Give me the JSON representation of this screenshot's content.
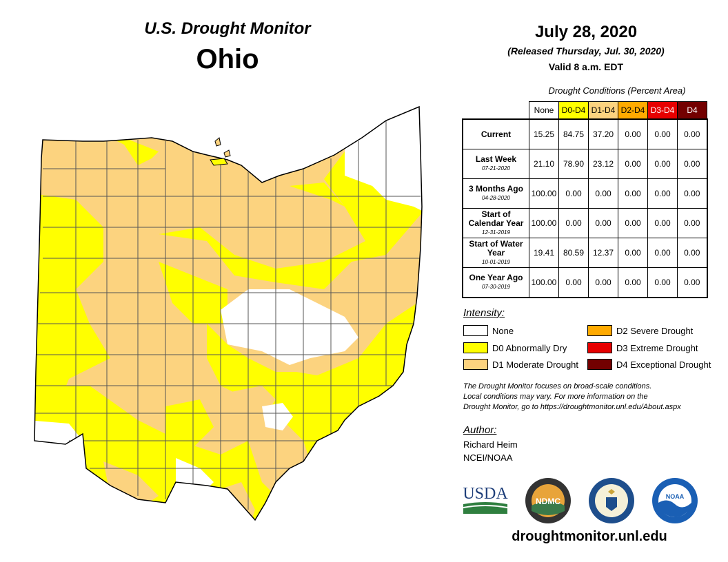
{
  "header": {
    "monitor_title": "U.S. Drought Monitor",
    "state": "Ohio",
    "map_date": "July 28, 2020",
    "released": "(Released Thursday, Jul. 30, 2020)",
    "valid": "Valid 8 a.m. EDT"
  },
  "table": {
    "caption": "Drought Conditions (Percent Area)",
    "columns": [
      {
        "label": "None",
        "color": "#ffffff",
        "text_color": "#000000"
      },
      {
        "label": "D0-D4",
        "color": "#ffff00",
        "text_color": "#000000"
      },
      {
        "label": "D1-D4",
        "color": "#fcd37f",
        "text_color": "#000000"
      },
      {
        "label": "D2-D4",
        "color": "#ffaa00",
        "text_color": "#000000"
      },
      {
        "label": "D3-D4",
        "color": "#e60000",
        "text_color": "#ffffff"
      },
      {
        "label": "D4",
        "color": "#730000",
        "text_color": "#ffffff"
      }
    ],
    "rows": [
      {
        "label": "Current",
        "date": "",
        "values": [
          "15.25",
          "84.75",
          "37.20",
          "0.00",
          "0.00",
          "0.00"
        ]
      },
      {
        "label": "Last Week",
        "date": "07-21-2020",
        "values": [
          "21.10",
          "78.90",
          "23.12",
          "0.00",
          "0.00",
          "0.00"
        ]
      },
      {
        "label": "3 Months Ago",
        "date": "04-28-2020",
        "values": [
          "100.00",
          "0.00",
          "0.00",
          "0.00",
          "0.00",
          "0.00"
        ]
      },
      {
        "label": "Start of Calendar Year",
        "date": "12-31-2019",
        "values": [
          "100.00",
          "0.00",
          "0.00",
          "0.00",
          "0.00",
          "0.00"
        ]
      },
      {
        "label": "Start of Water Year",
        "date": "10-01-2019",
        "values": [
          "19.41",
          "80.59",
          "12.37",
          "0.00",
          "0.00",
          "0.00"
        ]
      },
      {
        "label": "One Year Ago",
        "date": "07-30-2019",
        "values": [
          "100.00",
          "0.00",
          "0.00",
          "0.00",
          "0.00",
          "0.00"
        ]
      }
    ]
  },
  "legend": {
    "title": "Intensity:",
    "items": [
      {
        "label": "None",
        "color": "#ffffff"
      },
      {
        "label": "D0 Abnormally Dry",
        "color": "#ffff00"
      },
      {
        "label": "D1 Moderate Drought",
        "color": "#fcd37f"
      },
      {
        "label": "D2 Severe Drought",
        "color": "#ffaa00"
      },
      {
        "label": "D3 Extreme Drought",
        "color": "#e60000"
      },
      {
        "label": "D4 Exceptional Drought",
        "color": "#730000"
      }
    ]
  },
  "disclaimer": {
    "line1": "The Drought Monitor focuses on broad-scale conditions.",
    "line2": "Local conditions may vary. For more information on the",
    "line3": "Drought Monitor, go to https://droughtmonitor.unl.edu/About.aspx"
  },
  "author": {
    "title": "Author:",
    "name": "Richard Heim",
    "org": "NCEI/NOAA"
  },
  "logos": {
    "usda": "USDA",
    "ndmc": "NDMC",
    "noaa": "NOAA"
  },
  "website": "droughtmonitor.unl.edu"
}
